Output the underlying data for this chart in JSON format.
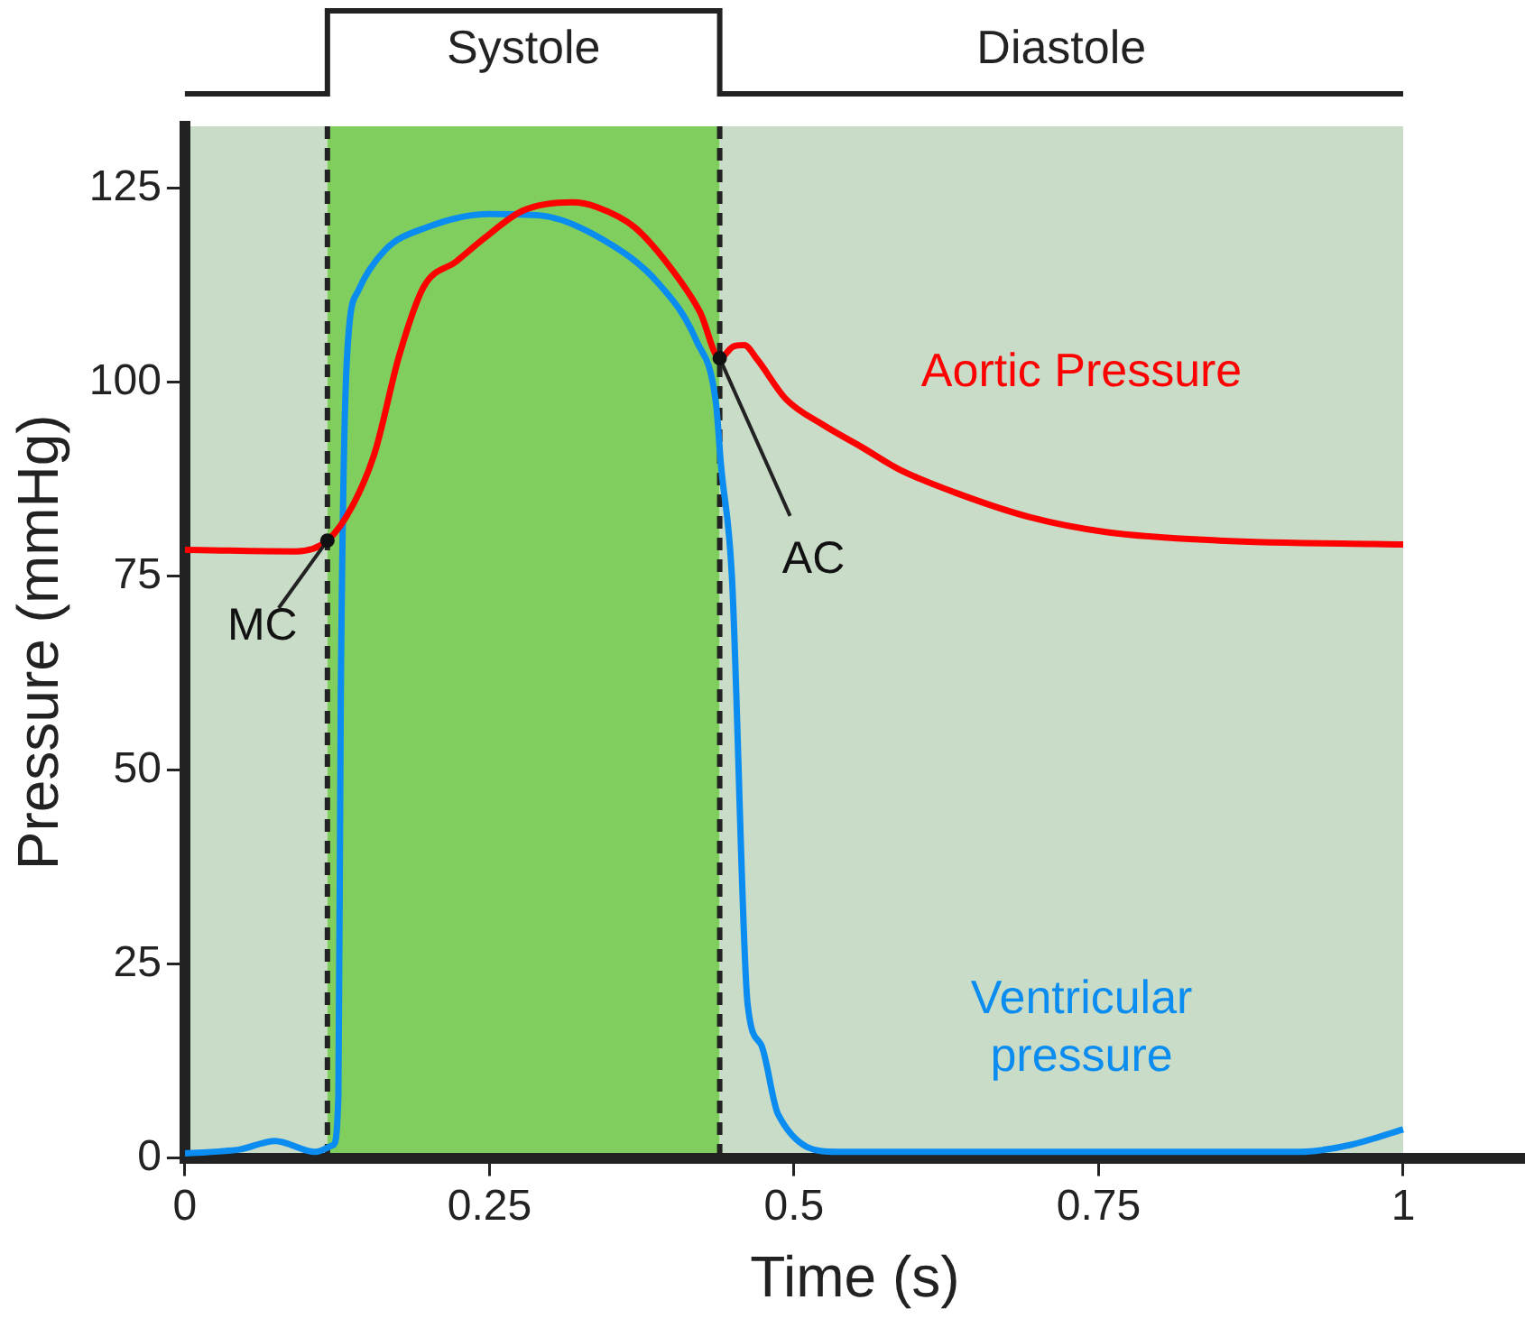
{
  "chart_data": {
    "type": "line",
    "xlabel": "Time (s)",
    "ylabel": "Pressure (mmHg)",
    "xlim": [
      0,
      1.1
    ],
    "xticks": [
      0,
      0.25,
      0.5,
      0.75,
      1
    ],
    "ylim": [
      0,
      133
    ],
    "yticks": [
      0,
      25,
      50,
      75,
      100,
      125
    ],
    "marker": "none",
    "line_style": "solid",
    "series": [
      {
        "name": "Aortic Pressure",
        "color": "#ff0000",
        "x": [
          0,
          0.091,
          0.117,
          0.138,
          0.156,
          0.176,
          0.196,
          0.223,
          0.246,
          0.277,
          0.318,
          0.338,
          0.369,
          0.4,
          0.423,
          0.439,
          0.45,
          0.459,
          0.47,
          0.493,
          0.524,
          0.555,
          0.586,
          0.632,
          0.694,
          0.756,
          0.849,
          1
        ],
        "values": [
          78.4,
          78.2,
          79.6,
          84.2,
          91,
          103.5,
          112.3,
          115.6,
          118.6,
          122.1,
          123.2,
          122.6,
          120,
          114.5,
          109,
          103.1,
          104.6,
          104.8,
          102.9,
          97.9,
          94.5,
          91.7,
          88.8,
          85.8,
          82.6,
          80.7,
          79.6,
          79.1
        ]
      },
      {
        "name": "Ventricular pressure",
        "color": "#0a8cf0",
        "x": [
          0,
          0.045,
          0.074,
          0.107,
          0.122,
          0.126,
          0.128,
          0.133,
          0.142,
          0.164,
          0.199,
          0.25,
          0.292,
          0.343,
          0.389,
          0.42,
          0.436,
          0.44,
          0.449,
          0.462,
          0.473,
          0.487,
          0.535,
          0.915,
          0.957,
          1
        ],
        "values": [
          0.6,
          1.1,
          2.2,
          0.8,
          1.7,
          8,
          60,
          103,
          111.7,
          117,
          120,
          121.7,
          121.5,
          118.4,
          112.7,
          105.3,
          97.2,
          89.4,
          75,
          19.7,
          14.6,
          5.6,
          0.8,
          0.8,
          1.7,
          3.7
        ]
      }
    ],
    "bands": [
      {
        "axis": "x",
        "from": 0,
        "to": 0.117,
        "color": "#c8dcc8"
      },
      {
        "axis": "x",
        "from": 0.117,
        "to": 0.439,
        "label": "Systole",
        "color": "#80cf5e"
      },
      {
        "axis": "x",
        "from": 0.439,
        "to": 1,
        "label": "Diastole",
        "color": "#c8dcc8"
      }
    ],
    "ref_lines": [
      {
        "axis": "x",
        "value": 0.117,
        "line_style": "dashed",
        "color": "#222222"
      },
      {
        "axis": "x",
        "value": 0.439,
        "line_style": "dashed",
        "color": "#222222"
      }
    ],
    "annotations": [
      {
        "text": "MC",
        "x": 0.117,
        "y": 79.6
      },
      {
        "text": "AC",
        "x": 0.439,
        "y": 103.1
      }
    ]
  }
}
